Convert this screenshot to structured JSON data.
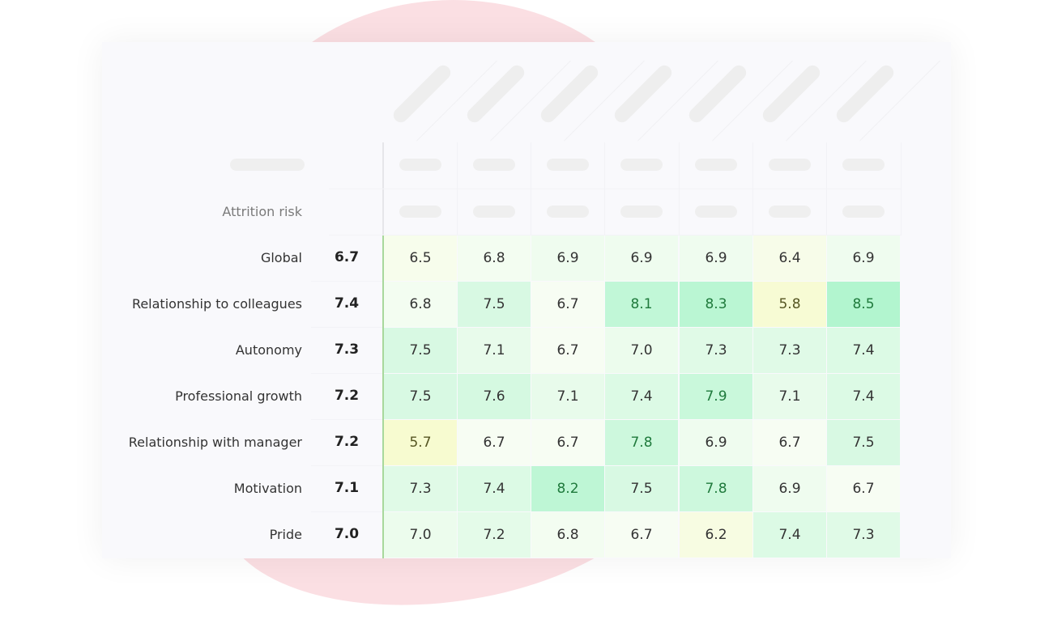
{
  "chart_data": {
    "type": "heatmap",
    "title": "",
    "header_label": "Attrition risk",
    "columns_count": 7,
    "rows": [
      {
        "label": "Global",
        "score": "6.7",
        "values": [
          "6.5",
          "6.8",
          "6.9",
          "6.9",
          "6.9",
          "6.4",
          "6.9"
        ]
      },
      {
        "label": "Relationship to colleagues",
        "score": "7.4",
        "values": [
          "6.8",
          "7.5",
          "6.7",
          "8.1",
          "8.3",
          "5.8",
          "8.5"
        ]
      },
      {
        "label": "Autonomy",
        "score": "7.3",
        "values": [
          "7.5",
          "7.1",
          "6.7",
          "7.0",
          "7.3",
          "7.3",
          "7.4"
        ]
      },
      {
        "label": "Professional growth",
        "score": "7.2",
        "values": [
          "7.5",
          "7.6",
          "7.1",
          "7.4",
          "7.9",
          "7.1",
          "7.4"
        ]
      },
      {
        "label": "Relationship with manager",
        "score": "7.2",
        "values": [
          "5.7",
          "6.7",
          "6.7",
          "7.8",
          "6.9",
          "6.7",
          "7.5"
        ]
      },
      {
        "label": "Motivation",
        "score": "7.1",
        "values": [
          "7.3",
          "7.4",
          "8.2",
          "7.5",
          "7.8",
          "6.9",
          "6.7"
        ]
      },
      {
        "label": "Pride",
        "score": "7.0",
        "values": [
          "7.0",
          "7.2",
          "6.8",
          "6.7",
          "6.2",
          "7.4",
          "7.3"
        ]
      }
    ],
    "color_scale": {
      "low": "#f7fbd0",
      "mid": "#f7fdf3",
      "high": "#b2f5cf"
    }
  },
  "colors": {
    "card_bg": "#f9f9fc",
    "blob": "#fbdfe3",
    "placeholder": "#efefef",
    "divider_green": "#a8d89c"
  }
}
